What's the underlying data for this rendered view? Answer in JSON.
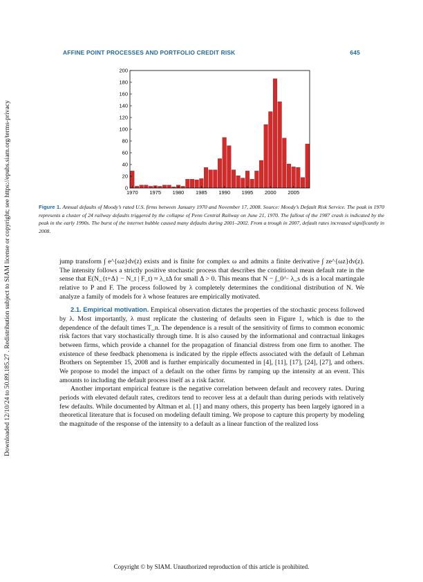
{
  "sidebar": {
    "text": "Downloaded 12/10/24 to 50.89.185.27 . Redistribution subject to SIAM license or copyright; see https://epubs.siam.org/terms-privacy"
  },
  "header": {
    "title": "AFFINE POINT PROCESSES AND PORTFOLIO CREDIT RISK",
    "page_number": "645"
  },
  "chart_data": {
    "type": "bar",
    "x": [
      1970,
      1971,
      1972,
      1973,
      1974,
      1975,
      1976,
      1977,
      1978,
      1979,
      1980,
      1981,
      1982,
      1983,
      1984,
      1985,
      1986,
      1987,
      1988,
      1989,
      1990,
      1991,
      1992,
      1993,
      1994,
      1995,
      1996,
      1997,
      1998,
      1999,
      2000,
      2001,
      2002,
      2003,
      2004,
      2005,
      2006,
      2007,
      2008
    ],
    "values": [
      29,
      3,
      5,
      5,
      3,
      4,
      3,
      5,
      5,
      2,
      5,
      3,
      15,
      15,
      14,
      16,
      35,
      31,
      31,
      50,
      86,
      72,
      31,
      21,
      17,
      29,
      15,
      29,
      47,
      108,
      130,
      186,
      147,
      85,
      41,
      36,
      35,
      18,
      75
    ],
    "xticks": [
      "1970",
      "1975",
      "1980",
      "1985",
      "1990",
      "1995",
      "2000",
      "2005"
    ],
    "yticks": [
      "0",
      "20",
      "40",
      "60",
      "80",
      "100",
      "120",
      "140",
      "160",
      "180",
      "200"
    ],
    "ylim": [
      0,
      200
    ],
    "title": "",
    "xlabel": "",
    "ylabel": "",
    "bar_color": "#d42a2a",
    "grid": false
  },
  "figure": {
    "label": "Figure 1.",
    "caption": "Annual defaults of Moody’s rated U.S. firms between January 1970 and November 17, 2008. Source: Moody’s Default Risk Service. The peak in 1970 represents a cluster of 24 railway defaults triggered by the collapse of Penn Central Railway on June 21, 1970. The fallout of the 1987 crash is indicated by the peak in the early 1990s. The burst of the internet bubble caused many defaults during 2001–2002. From a trough in 2007, default rates increased significantly in 2008."
  },
  "body": {
    "p1": "jump transform ∫ e^{ωz}dν(z) exists and is finite for complex ω and admits a finite derivative ∫ ze^{ωz}dν(z). The intensity follows a strictly positive stochastic process that describes the conditional mean default rate in the sense that E(N_{t+Δ} − N_t | F_t) ≈ λ_tΔ for small Δ > 0. This means that N − ∫_0^· λ_s ds is a local martingale relative to P and F. The process followed by λ completely determines the conditional distribution of N. We analyze a family of models for λ whose features are empirically motivated.",
    "section_number": "2.1.",
    "section_title": "Empirical motivation.",
    "p2": "Empirical observation dictates the properties of the stochastic process followed by λ. Most importantly, λ must replicate the clustering of defaults seen in Figure 1, which is due to the dependence of the default times T_n. The dependence is a result of the sensitivity of firms to common economic risk factors that vary stochastically through time. It is also caused by the informational and contractual linkages between firms, which provide a channel for the propagation of financial distress from one firm to another. The existence of these feedback phenomena is indicated by the ripple effects associated with the default of Lehman Brothers on September 15, 2008 and is further empirically documented in [4], [11], [17], [24], [27], and others. We propose to model the impact of a default on the other firms by ramping up the intensity at an event. This amounts to including the default process itself as a risk factor.",
    "p3": "Another important empirical feature is the negative correlation between default and recovery rates. During periods with elevated default rates, creditors tend to recover less at a default than during periods with relatively few defaults. While documented by Altman et al. [1] and many others, this property has been largely ignored in a theoretical literature that is focused on modeling default timing. We propose to capture this property by modeling the magnitude of the response of the intensity to a default as a linear function of the realized loss"
  },
  "footer": {
    "text": "Copyright © by SIAM. Unauthorized reproduction of this article is prohibited."
  },
  "colors": {
    "accent": "#1d66a8",
    "bar": "#d42a2a"
  }
}
